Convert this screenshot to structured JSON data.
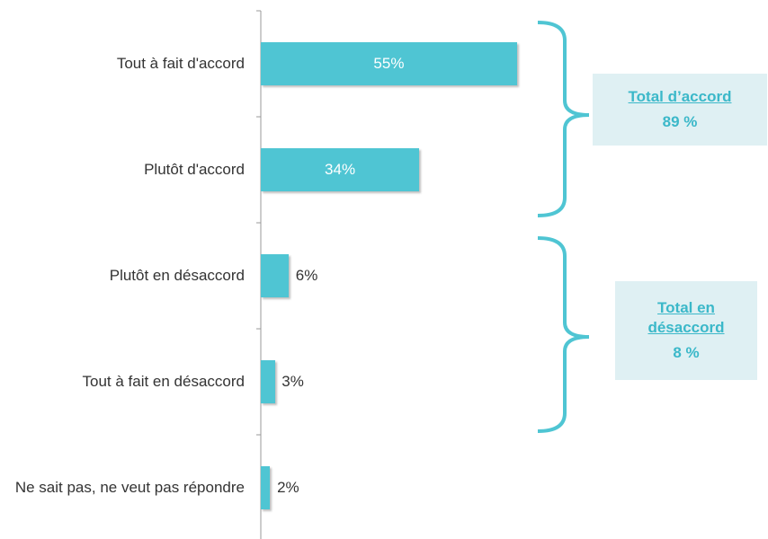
{
  "chart_data": {
    "type": "bar",
    "orientation": "horizontal",
    "categories": [
      "Tout à fait d'accord",
      "Plutôt d'accord",
      "Plutôt en désaccord",
      "Tout à fait en désaccord",
      "Ne sait pas, ne veut pas répondre"
    ],
    "values": [
      55,
      34,
      6,
      3,
      2
    ],
    "value_labels": [
      "55%",
      "34%",
      "6%",
      "3%",
      "2%"
    ],
    "color": "#4fc5d3",
    "annotations": [
      {
        "title": "Total d’accord",
        "label": "89 %"
      },
      {
        "title": "Total en désaccord",
        "label": "8 %"
      }
    ]
  }
}
